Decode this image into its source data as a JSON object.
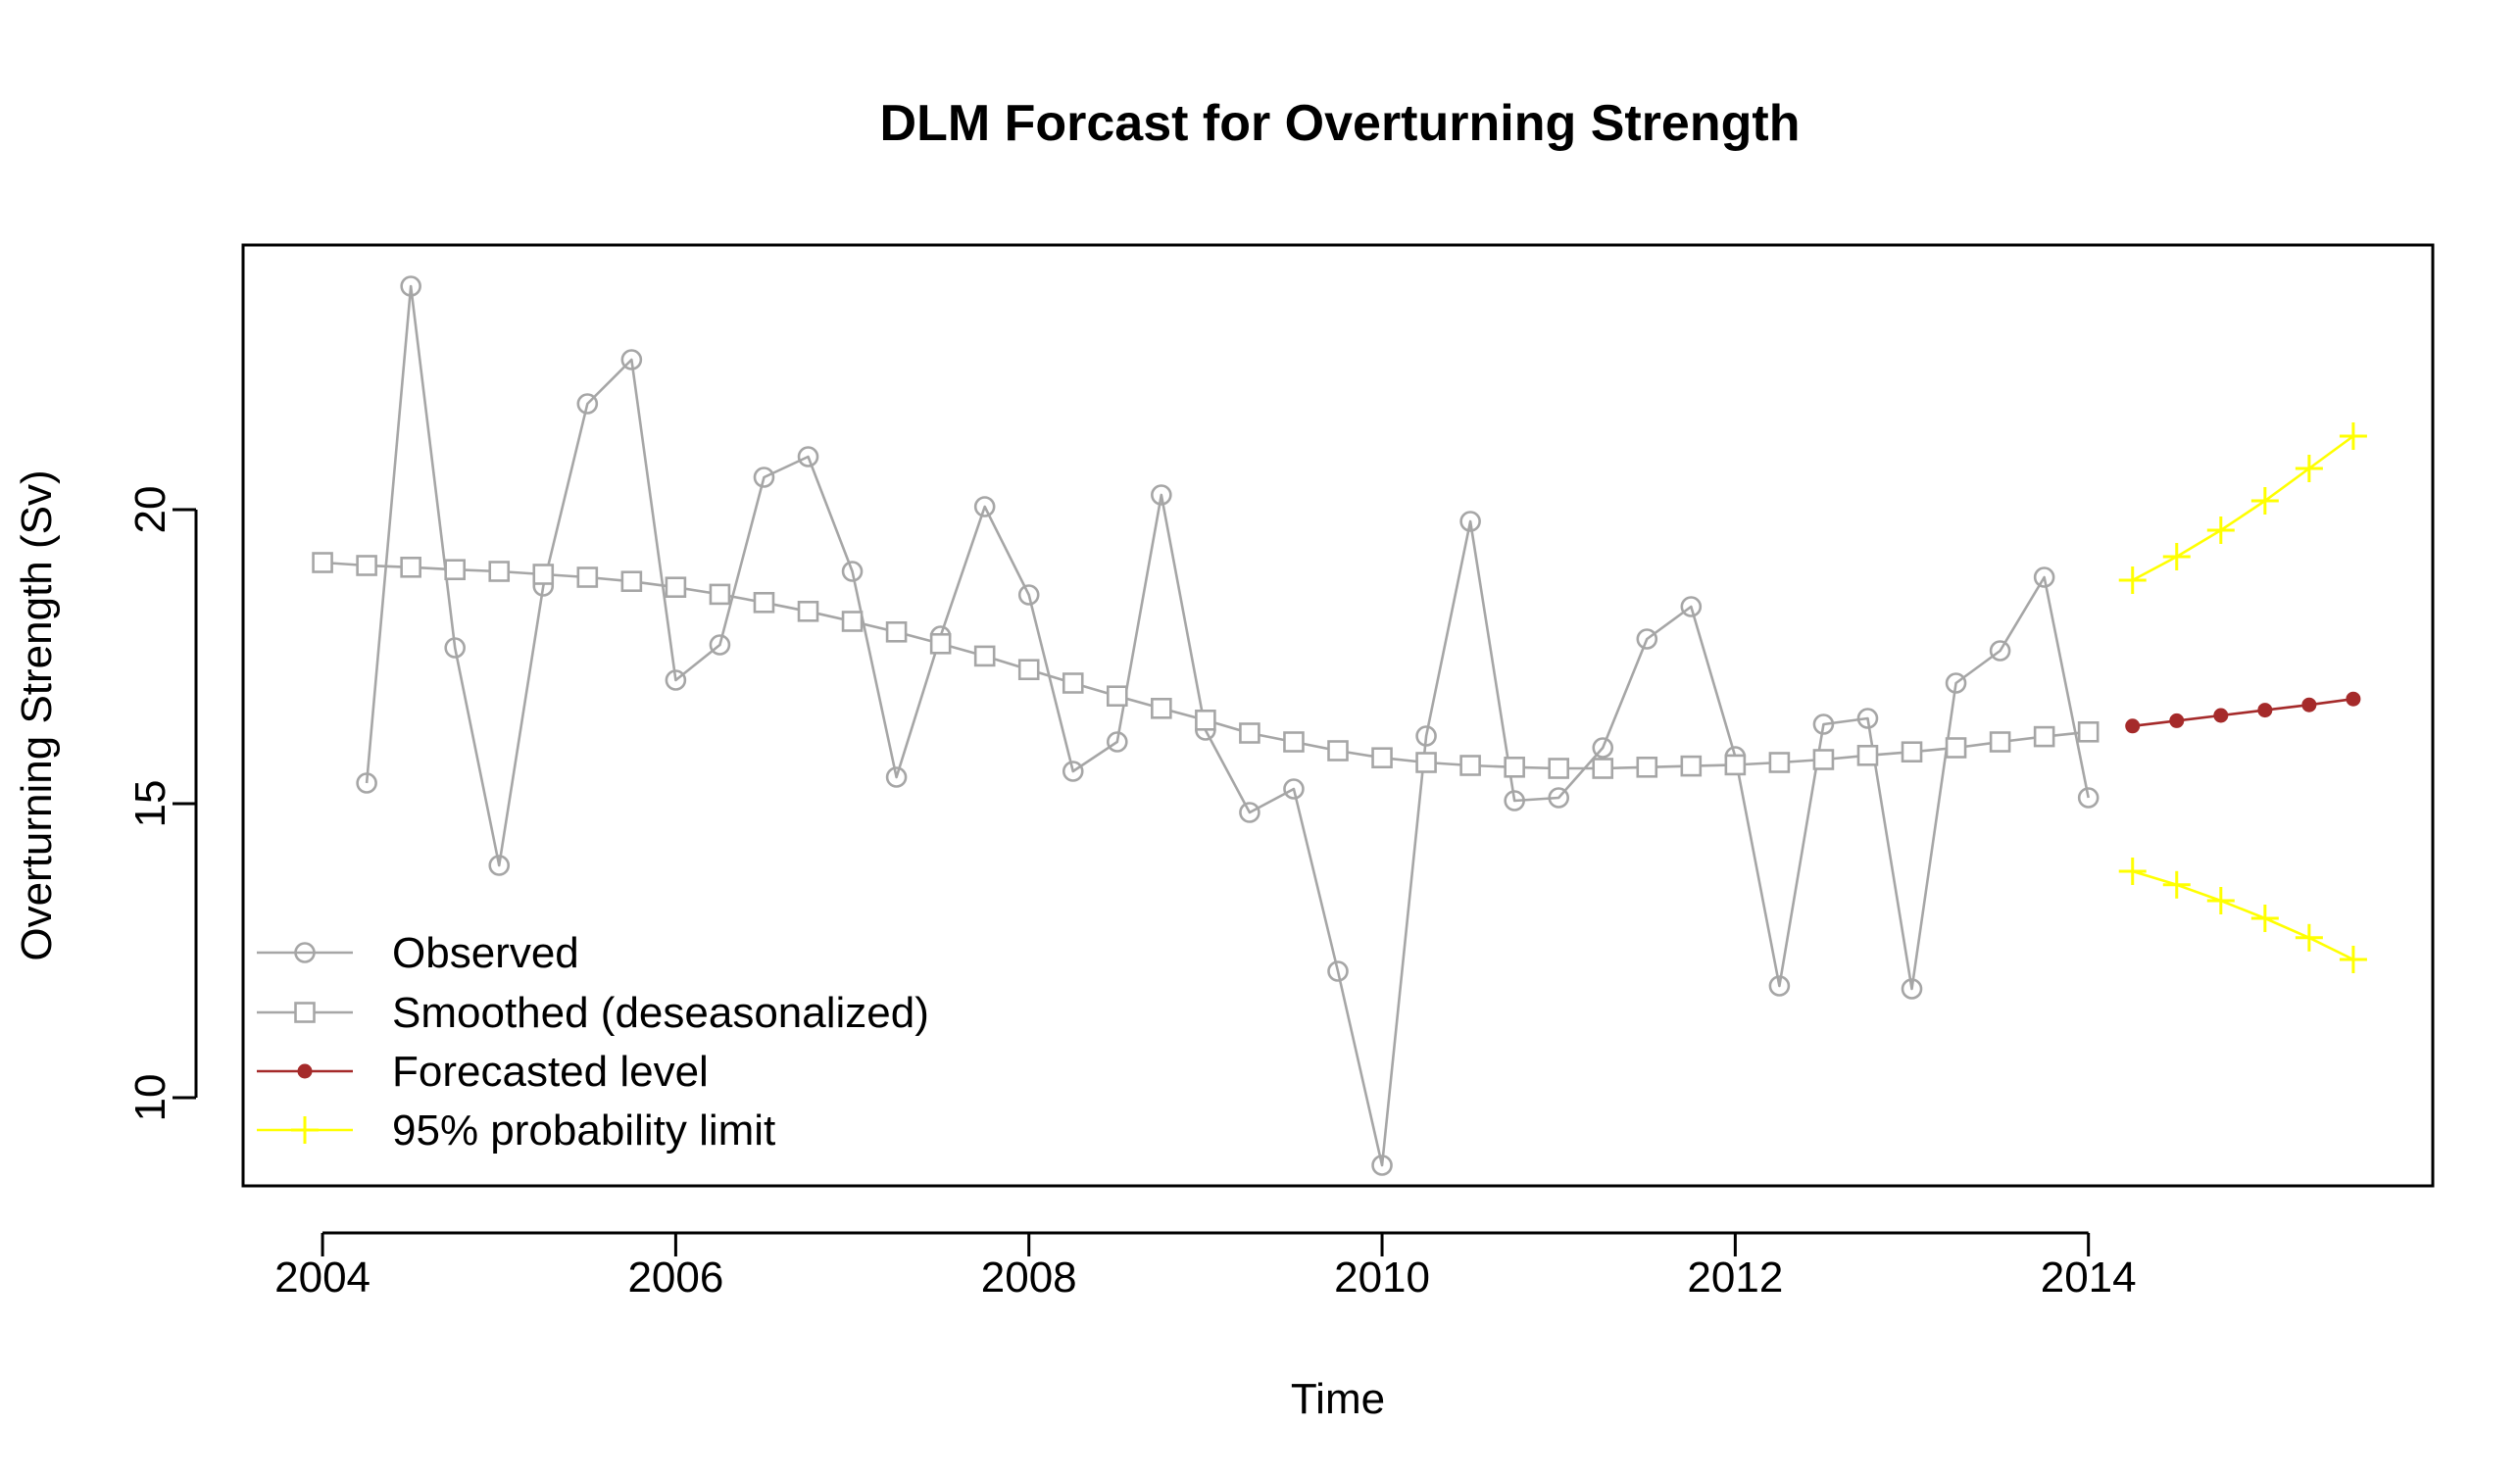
{
  "chart_data": {
    "type": "line",
    "title": "DLM Forcast for Overturning Strength",
    "xlabel": "Time",
    "ylabel": "Overturning Strength (Sv)",
    "xlim": [
      2003.55,
      2015.95
    ],
    "ylim": [
      8.5,
      24.5
    ],
    "x_ticks": [
      2004,
      2006,
      2008,
      2010,
      2012,
      2014
    ],
    "y_ticks": [
      10,
      15,
      20
    ],
    "x_tick_labels": [
      "2004",
      "2006",
      "2008",
      "2010",
      "2012",
      "2014"
    ],
    "y_tick_labels": [
      "10",
      "15",
      "20"
    ],
    "grid": false,
    "legend_position": "bottom-left",
    "series": [
      {
        "name": "Observed",
        "color": "#a6a6a6",
        "marker": "open-circle",
        "x": [
          2004.25,
          2004.5,
          2004.75,
          2005.0,
          2005.25,
          2005.5,
          2005.75,
          2006.0,
          2006.25,
          2006.5,
          2006.75,
          2007.0,
          2007.25,
          2007.5,
          2007.75,
          2008.0,
          2008.25,
          2008.5,
          2008.75,
          2009.0,
          2009.25,
          2009.5,
          2009.75,
          2010.0,
          2010.25,
          2010.5,
          2010.75,
          2011.0,
          2011.25,
          2011.5,
          2011.75,
          2012.0,
          2012.25,
          2012.5,
          2012.75,
          2013.0,
          2013.25,
          2013.5,
          2013.75,
          2014.0
        ],
        "values": [
          15.35,
          23.8,
          17.65,
          13.95,
          18.7,
          21.8,
          22.55,
          17.1,
          17.7,
          20.55,
          20.9,
          18.95,
          15.45,
          17.85,
          20.05,
          18.55,
          15.55,
          16.05,
          20.25,
          16.25,
          14.85,
          15.25,
          12.15,
          8.85,
          16.15,
          19.8,
          15.05,
          15.1,
          15.95,
          17.8,
          18.35,
          15.8,
          11.9,
          16.35,
          16.45,
          11.85,
          17.05,
          17.6,
          18.85,
          15.1
        ]
      },
      {
        "name": "Smoothed (deseasonalized)",
        "color": "#a6a6a6",
        "marker": "open-square",
        "x": [
          2004.0,
          2004.25,
          2004.5,
          2004.75,
          2005.0,
          2005.25,
          2005.5,
          2005.75,
          2006.0,
          2006.25,
          2006.5,
          2006.75,
          2007.0,
          2007.25,
          2007.5,
          2007.75,
          2008.0,
          2008.25,
          2008.5,
          2008.75,
          2009.0,
          2009.25,
          2009.5,
          2009.75,
          2010.0,
          2010.25,
          2010.5,
          2010.75,
          2011.0,
          2011.25,
          2011.5,
          2011.75,
          2012.0,
          2012.25,
          2012.5,
          2012.75,
          2013.0,
          2013.25,
          2013.5,
          2013.75,
          2014.0
        ],
        "values": [
          19.1,
          19.05,
          19.02,
          18.98,
          18.95,
          18.9,
          18.85,
          18.78,
          18.68,
          18.56,
          18.42,
          18.27,
          18.1,
          17.92,
          17.72,
          17.51,
          17.28,
          17.05,
          16.83,
          16.62,
          16.42,
          16.2,
          16.05,
          15.9,
          15.78,
          15.7,
          15.65,
          15.62,
          15.6,
          15.6,
          15.62,
          15.64,
          15.66,
          15.7,
          15.75,
          15.82,
          15.88,
          15.95,
          16.05,
          16.14,
          16.22
        ]
      },
      {
        "name": "Forecasted level",
        "color": "#a52a2a",
        "marker": "filled-circle",
        "x": [
          2014.25,
          2014.5,
          2014.75,
          2015.0,
          2015.25,
          2015.5
        ],
        "values": [
          16.32,
          16.41,
          16.5,
          16.59,
          16.68,
          16.78
        ]
      },
      {
        "name": "95% probability limit",
        "color": "#ffff00",
        "marker": "plus",
        "x": [
          2014.25,
          2014.5,
          2014.75,
          2015.0,
          2015.25,
          2015.5
        ],
        "values": [
          18.8,
          19.2,
          19.65,
          20.15,
          20.7,
          21.25
        ],
        "lower_values": [
          13.85,
          13.62,
          13.35,
          13.05,
          12.72,
          12.35
        ]
      }
    ]
  }
}
